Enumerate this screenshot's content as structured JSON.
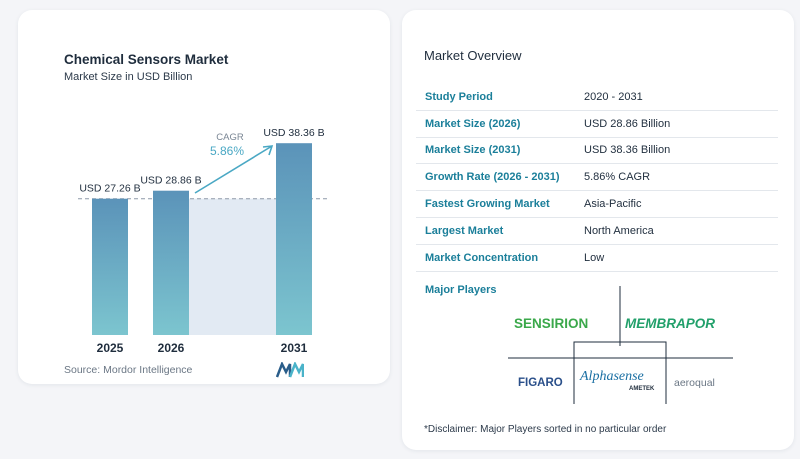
{
  "chart_data": {
    "type": "bar",
    "title": "Chemical Sensors Market",
    "subtitle": "Market Size in USD Billion",
    "categories": [
      "2025",
      "2026",
      "2031"
    ],
    "values": [
      27.26,
      28.86,
      38.36
    ],
    "data_labels": [
      "USD 27.26 B",
      "USD 28.86 B",
      "USD 38.36 B"
    ],
    "ylim": [
      0,
      40
    ],
    "annotation": {
      "label": "CAGR",
      "value": "5.86%"
    },
    "colors": {
      "bar_top": "#5b93b9",
      "bar_bottom": "#7cc5cf",
      "shade": "#e2eaf3",
      "accent": "#4aa8c4"
    }
  },
  "source": "Source:  Mordor Intelligence",
  "overview": {
    "title": "Market Overview",
    "rows": [
      {
        "label": "Study Period",
        "value": "2020 - 2031"
      },
      {
        "label": "Market Size (2026)",
        "value": "USD 28.86 Billion"
      },
      {
        "label": "Market Size (2031)",
        "value": "USD 38.36 Billion"
      },
      {
        "label": "Growth Rate (2026 - 2031)",
        "value": "5.86% CAGR"
      },
      {
        "label": "Fastest Growing Market",
        "value": "Asia-Pacific"
      },
      {
        "label": "Largest Market",
        "value": "North America"
      },
      {
        "label": "Market Concentration",
        "value": "Low"
      }
    ]
  },
  "players": {
    "title": "Major Players",
    "logos": {
      "sensirion": "SENSIRION",
      "membrapor": "MEMBRAPOR",
      "figaro": "FIGARO",
      "alphasense": "Alphasense",
      "alphasense_sub": "AMETEK",
      "aeroqual": "aeroqual"
    }
  },
  "disclaimer": "*Disclaimer: Major Players sorted in no particular order"
}
